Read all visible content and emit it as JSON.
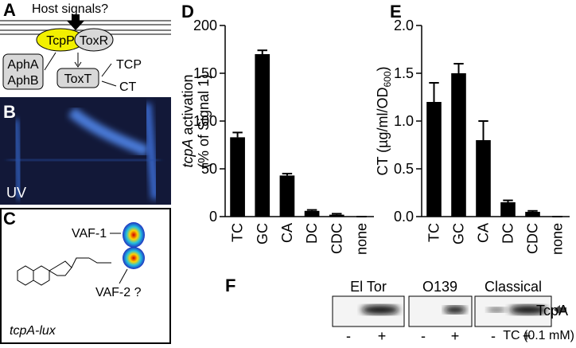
{
  "panel_labels": {
    "a": "A",
    "b": "B",
    "c": "C",
    "d": "D",
    "e": "E",
    "f": "F"
  },
  "diagram": {
    "host_signals": "Host signals?",
    "tcpp": "TcpP",
    "toxr": "ToxR",
    "apha": "AphA",
    "aphb": "AphB",
    "toxt": "ToxT",
    "tcp": "TCP",
    "ct": "CT"
  },
  "image_b": {
    "label": "UV"
  },
  "image_c": {
    "vaf1": "VAF-1",
    "vaf2": "VAF-2 ?",
    "strain": "tcpA-lux"
  },
  "chart_data": [
    {
      "type": "bar",
      "ylabel_gene": "tcpA",
      "ylabel_rest": " activation",
      "ylabel_line2": "(% of Signal 1)",
      "categories": [
        "TC",
        "GC",
        "CA",
        "DC",
        "CDC",
        "none"
      ],
      "values": [
        83,
        170,
        43,
        6,
        2,
        0
      ],
      "errors": [
        5,
        4,
        2,
        1,
        1,
        0
      ],
      "color": "#000000",
      "ylim": [
        0,
        200
      ],
      "yticks": [
        0,
        50,
        100,
        150,
        200
      ]
    },
    {
      "type": "bar",
      "ylabel_main": "CT (µg/ml/OD",
      "ylabel_sub": "600",
      "ylabel_end": ")",
      "categories": [
        "TC",
        "GC",
        "CA",
        "DC",
        "CDC",
        "none"
      ],
      "values": [
        1.2,
        1.5,
        0.8,
        0.15,
        0.05,
        0
      ],
      "errors": [
        0.2,
        0.1,
        0.2,
        0.02,
        0.01,
        0
      ],
      "color": "#000000",
      "ylim": [
        0,
        2.0
      ],
      "yticks": [
        {
          "value": 0,
          "label": "0.0"
        },
        {
          "value": 0.5,
          "label": "0.5"
        },
        {
          "value": 1.0,
          "label": "1.0"
        },
        {
          "value": 1.5,
          "label": "1.5"
        },
        {
          "value": 2.0,
          "label": "2.0"
        }
      ]
    }
  ],
  "blot": {
    "strains": [
      "El Tor",
      "O139",
      "Classical"
    ],
    "band": "TcpA",
    "minus": "-",
    "plus": "+",
    "treatment": "TC (0.1 mM)"
  }
}
